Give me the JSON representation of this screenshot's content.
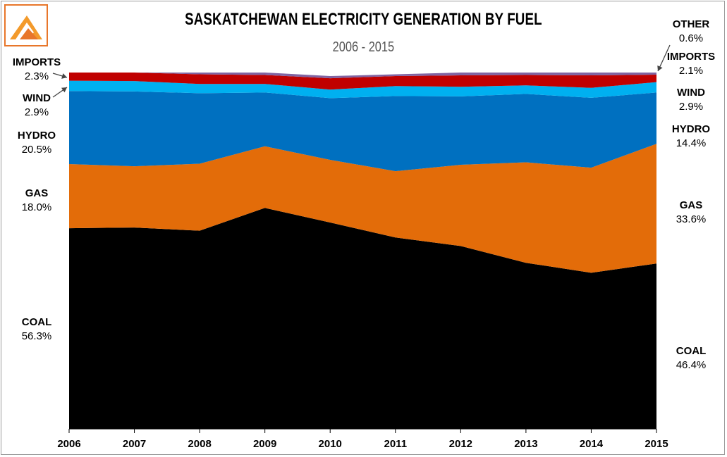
{
  "title": "SASKATCHEWAN ELECTRICITY GENERATION BY FUEL",
  "subtitle": "2006 - 2015",
  "logo_icon": "triangle-logo-icon",
  "chart_data": {
    "type": "area",
    "stacked": true,
    "x": [
      "2006",
      "2007",
      "2008",
      "2009",
      "2010",
      "2011",
      "2012",
      "2013",
      "2014",
      "2015"
    ],
    "ylim": [
      0,
      100
    ],
    "grid": false,
    "series": [
      {
        "name": "COAL",
        "color": "#000000",
        "values": [
          56.3,
          56.5,
          55.6,
          62.0,
          57.9,
          53.7,
          51.3,
          46.6,
          43.8,
          46.4
        ]
      },
      {
        "name": "GAS",
        "color": "#e36c09",
        "values": [
          18.0,
          17.2,
          18.8,
          17.3,
          17.6,
          18.6,
          22.8,
          28.2,
          29.5,
          33.6
        ]
      },
      {
        "name": "HYDRO",
        "color": "#0070c0",
        "values": [
          20.5,
          21.0,
          19.8,
          15.1,
          17.3,
          21.1,
          19.2,
          19.2,
          19.6,
          14.4
        ]
      },
      {
        "name": "WIND",
        "color": "#00b0f0",
        "values": [
          2.9,
          2.9,
          2.6,
          2.4,
          2.4,
          2.8,
          2.7,
          2.4,
          2.8,
          2.9
        ]
      },
      {
        "name": "IMPORTS",
        "color": "#c00000",
        "values": [
          2.3,
          2.4,
          2.7,
          2.5,
          3.2,
          2.8,
          3.2,
          2.9,
          3.5,
          2.1
        ]
      },
      {
        "name": "OTHER",
        "color": "#8064a2",
        "values": [
          0.0,
          0.0,
          0.5,
          0.7,
          0.6,
          0.5,
          0.8,
          0.7,
          0.8,
          0.6
        ]
      }
    ],
    "labels_left": [
      {
        "name": "IMPORTS",
        "value": "2.3%"
      },
      {
        "name": "WIND",
        "value": "2.9%"
      },
      {
        "name": "HYDRO",
        "value": "20.5%"
      },
      {
        "name": "GAS",
        "value": "18.0%"
      },
      {
        "name": "COAL",
        "value": "56.3%"
      }
    ],
    "labels_right": [
      {
        "name": "OTHER",
        "value": "0.6%"
      },
      {
        "name": "IMPORTS",
        "value": "2.1%"
      },
      {
        "name": "WIND",
        "value": "2.9%"
      },
      {
        "name": "HYDRO",
        "value": "14.4%"
      },
      {
        "name": "GAS",
        "value": "33.6%"
      },
      {
        "name": "COAL",
        "value": "46.4%"
      }
    ]
  }
}
